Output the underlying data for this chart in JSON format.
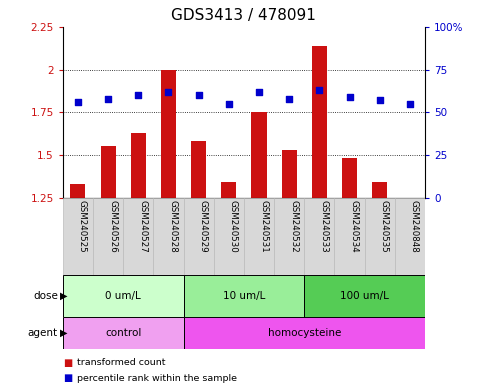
{
  "title": "GDS3413 / 478091",
  "samples": [
    "GSM240525",
    "GSM240526",
    "GSM240527",
    "GSM240528",
    "GSM240529",
    "GSM240530",
    "GSM240531",
    "GSM240532",
    "GSM240533",
    "GSM240534",
    "GSM240535",
    "GSM240848"
  ],
  "bar_values": [
    1.33,
    1.55,
    1.63,
    2.0,
    1.58,
    1.34,
    1.75,
    1.53,
    2.14,
    1.48,
    1.34,
    1.25
  ],
  "dot_values": [
    56,
    58,
    60,
    62,
    60,
    55,
    62,
    58,
    63,
    59,
    57,
    55
  ],
  "bar_bottom": 1.25,
  "ylim_left": [
    1.25,
    2.25
  ],
  "ylim_right": [
    0,
    100
  ],
  "yticks_left": [
    1.25,
    1.5,
    1.75,
    2.0,
    2.25
  ],
  "yticks_right": [
    0,
    25,
    50,
    75,
    100
  ],
  "ytick_labels_left": [
    "1.25",
    "1.5",
    "1.75",
    "2",
    "2.25"
  ],
  "ytick_labels_right": [
    "0",
    "25",
    "50",
    "75",
    "100%"
  ],
  "bar_color": "#cc1111",
  "dot_color": "#0000cc",
  "dose_groups": [
    {
      "label": "0 um/L",
      "start": 0,
      "end": 4,
      "color": "#ccffcc"
    },
    {
      "label": "10 um/L",
      "start": 4,
      "end": 8,
      "color": "#99ee99"
    },
    {
      "label": "100 um/L",
      "start": 8,
      "end": 12,
      "color": "#55cc55"
    }
  ],
  "agent_groups": [
    {
      "label": "control",
      "start": 0,
      "end": 4,
      "color": "#f0a0f0"
    },
    {
      "label": "homocysteine",
      "start": 4,
      "end": 12,
      "color": "#ee55ee"
    }
  ],
  "legend_items": [
    {
      "label": "transformed count",
      "color": "#cc1111"
    },
    {
      "label": "percentile rank within the sample",
      "color": "#0000cc"
    }
  ],
  "dose_label": "dose",
  "agent_label": "agent",
  "bg_color": "#ffffff",
  "sample_bg": "#d8d8d8",
  "title_fontsize": 11,
  "tick_fontsize": 7.5,
  "label_fontsize": 8
}
